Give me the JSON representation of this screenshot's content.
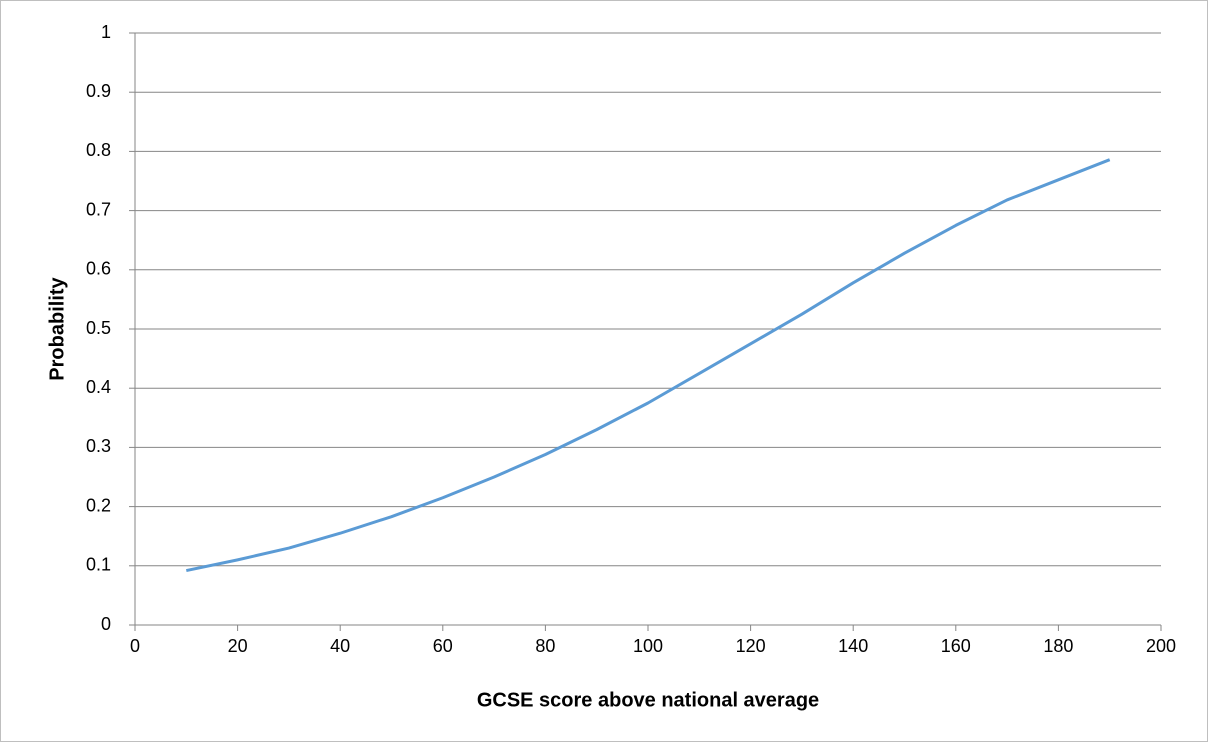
{
  "chart_data": {
    "type": "line",
    "x_label": "GCSE score above national average",
    "y_label": "Probability",
    "xlim": [
      0,
      200
    ],
    "xticks": [
      0,
      20,
      40,
      60,
      80,
      100,
      120,
      140,
      160,
      180,
      200
    ],
    "ylim": [
      0,
      1
    ],
    "yticks": [
      0,
      0.1,
      0.2,
      0.3,
      0.4,
      0.5,
      0.6,
      0.7,
      0.8,
      0.9,
      1
    ],
    "grid": true,
    "series": [
      {
        "color": "#5b9bd5",
        "x": [
          10,
          20,
          30,
          40,
          50,
          60,
          70,
          80,
          90,
          100,
          110,
          120,
          130,
          140,
          150,
          160,
          170,
          180,
          190
        ],
        "values": [
          0.092,
          0.11,
          0.13,
          0.155,
          0.183,
          0.215,
          0.25,
          0.288,
          0.33,
          0.375,
          0.425,
          0.475,
          0.525,
          0.578,
          0.628,
          0.675,
          0.718,
          0.752,
          0.786
        ]
      }
    ]
  }
}
